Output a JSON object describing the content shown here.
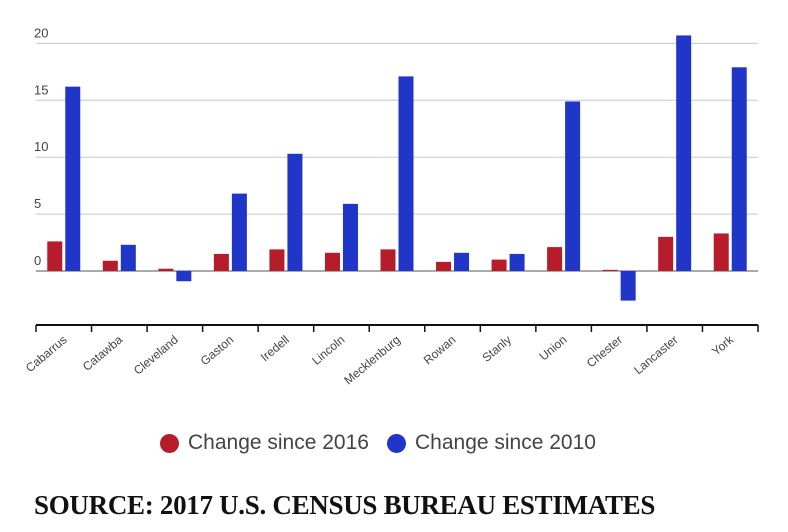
{
  "chart_data": {
    "type": "bar",
    "categories": [
      "Cabarrus",
      "Catawba",
      "Cleveland",
      "Gaston",
      "Iredell",
      "Lincoln",
      "Mecklenburg",
      "Rowan",
      "Stanly",
      "Union",
      "Chester",
      "Lancaster",
      "York"
    ],
    "series": [
      {
        "name": "Change since 2016",
        "color": "#b71c2a",
        "values": [
          2.6,
          0.9,
          0.2,
          1.5,
          1.9,
          1.6,
          1.9,
          0.8,
          1.0,
          2.1,
          0.1,
          3.0,
          3.3
        ]
      },
      {
        "name": "Change since 2010",
        "color": "#1f36c8",
        "values": [
          16.2,
          2.3,
          -0.9,
          6.8,
          10.3,
          5.9,
          17.1,
          1.6,
          1.5,
          14.9,
          -2.6,
          20.7,
          17.9
        ]
      }
    ],
    "yticks": [
      0,
      5,
      10,
      15,
      20
    ],
    "ylim": [
      -5,
      20
    ],
    "grid": true,
    "legend_position": "bottom",
    "title": "",
    "xlabel": "",
    "ylabel": ""
  },
  "source": "SOURCE: 2017 U.S. CENSUS BUREAU ESTIMATES"
}
